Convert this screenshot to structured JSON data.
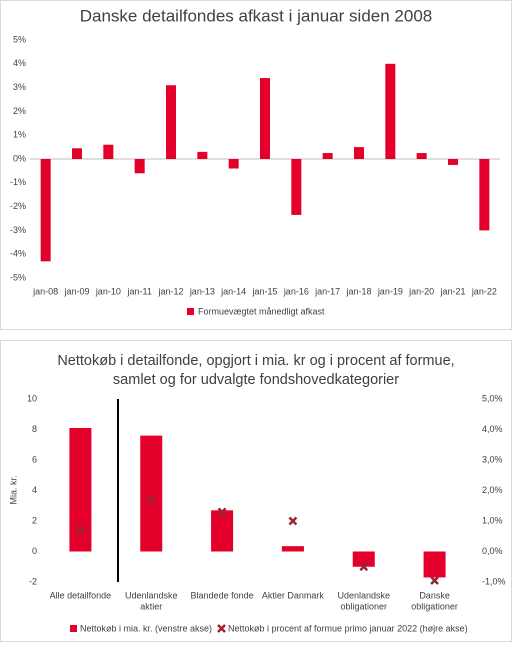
{
  "chart_data": [
    {
      "type": "bar",
      "title": "Danske detailfondes afkast i januar siden 2008",
      "categories": [
        "jan-08",
        "jan-09",
        "jan-10",
        "jan-11",
        "jan-12",
        "jan-13",
        "jan-14",
        "jan-15",
        "jan-16",
        "jan-17",
        "jan-18",
        "jan-19",
        "jan-20",
        "jan-21",
        "jan-22"
      ],
      "series": [
        {
          "name": "Formuevægtet månedligt afkast",
          "color": "#e3002b",
          "values": [
            -4.3,
            0.45,
            0.6,
            -0.6,
            3.1,
            0.3,
            -0.4,
            3.4,
            -2.35,
            0.25,
            0.5,
            4.0,
            0.25,
            -0.25,
            -3.0
          ]
        }
      ],
      "ylim": [
        -5,
        5
      ],
      "yticks": [
        {
          "value": -5,
          "label": "-5%"
        },
        {
          "value": -4,
          "label": "-4%"
        },
        {
          "value": -3,
          "label": "-3%"
        },
        {
          "value": -2,
          "label": "-2%"
        },
        {
          "value": -1,
          "label": "-1%"
        },
        {
          "value": 0,
          "label": "0%"
        },
        {
          "value": 1,
          "label": "1%"
        },
        {
          "value": 2,
          "label": "2%"
        },
        {
          "value": 3,
          "label": "3%"
        },
        {
          "value": 4,
          "label": "4%"
        },
        {
          "value": 5,
          "label": "5%"
        }
      ],
      "grid": false,
      "legend": "bottom"
    },
    {
      "type": "combo",
      "title": [
        "Nettokøb i detailfonde, opgjort i mia. kr og i procent af formue,",
        "samlet og for udvalgte fondshovedkategorier"
      ],
      "y_label": "Mia. kr.",
      "categories": [
        [
          "Alle detailfonde"
        ],
        [
          "Udenlandske",
          "aktier"
        ],
        [
          "Blandede fonde"
        ],
        [
          "Aktier Danmark"
        ],
        [
          "Udenlandske",
          "obligationer"
        ],
        [
          "Danske",
          "obligationer"
        ]
      ],
      "series": [
        {
          "name": "Nettokøb i mia. kr. (venstre akse)",
          "type": "bar",
          "color": "#e3002b",
          "values": [
            8.1,
            7.6,
            2.7,
            0.35,
            -1.0,
            -1.7
          ]
        },
        {
          "name": "Nettokøb i procent af formue primo januar 2022 (højre akse)",
          "type": "scatter",
          "axis": "y2",
          "color": "#9b2335",
          "values": [
            0.7,
            1.7,
            1.3,
            1.0,
            -0.5,
            -0.95
          ]
        }
      ],
      "ylim": [
        -2,
        10
      ],
      "yticks": [
        -2,
        0,
        2,
        4,
        6,
        8,
        10
      ],
      "y2lim": [
        -1,
        5
      ],
      "y2ticks": [
        {
          "value": -1,
          "label": "-1,0%"
        },
        {
          "value": 0,
          "label": "0,0%"
        },
        {
          "value": 1,
          "label": "1,0%"
        },
        {
          "value": 2,
          "label": "2,0%"
        },
        {
          "value": 3,
          "label": "3,0%"
        },
        {
          "value": 4,
          "label": "4,0%"
        },
        {
          "value": 5,
          "label": "5,0%"
        }
      ],
      "grid": false,
      "legend": "bottom"
    }
  ]
}
